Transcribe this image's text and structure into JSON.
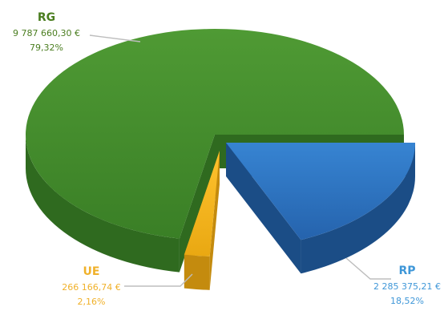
{
  "chart_data": {
    "type": "pie",
    "style": "3d-exploded",
    "slices": [
      {
        "name": "RG",
        "value": 9787660.3,
        "value_label": "9 787 660,30 €",
        "percent": 79.32,
        "percent_label": "79,32%",
        "color": "#3f8a2a",
        "label_color": "#4a7d1f"
      },
      {
        "name": "RP",
        "value": 2285375.21,
        "value_label": "2 285 375,21 €",
        "percent": 18.52,
        "percent_label": "18,52%",
        "color": "#2a73c4",
        "label_color": "#3f97d8"
      },
      {
        "name": "UE",
        "value": 266166.74,
        "value_label": "266 166,74 €",
        "percent": 2.16,
        "percent_label": "2,16%",
        "color": "#f2b21c",
        "label_color": "#f0b12a"
      }
    ]
  }
}
